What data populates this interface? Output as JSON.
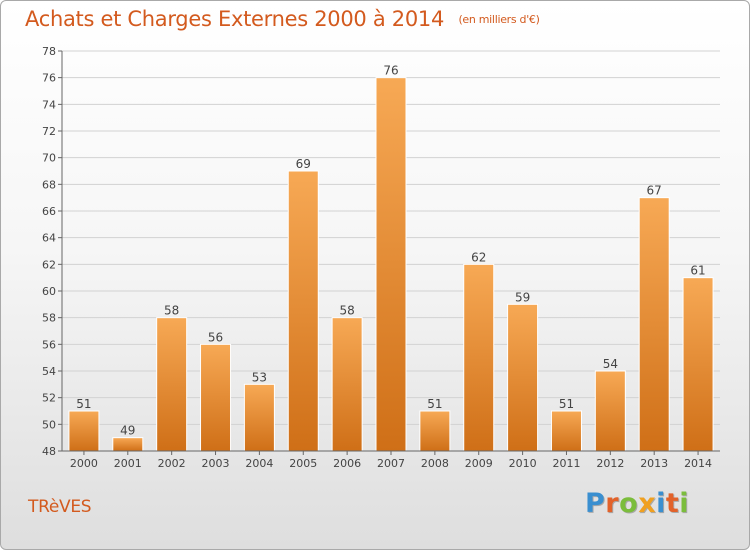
{
  "title": "Achats et Charges Externes 2000 à 2014",
  "subtitle": "(en milliers d'€)",
  "location": "TRèVES",
  "brand": {
    "letters": [
      "P",
      "r",
      "o",
      "x",
      "i",
      "t",
      "i"
    ],
    "colors": [
      "#3a8fd0",
      "#e2622a",
      "#7bbd3c",
      "#f0a020",
      "#3a8fd0",
      "#e2622a",
      "#7bbd3c"
    ]
  },
  "colors": {
    "title": "#d35a1e",
    "bar_light": "#f7a955",
    "bar_dark": "#cf6f17",
    "grid": "#d2d2d2",
    "axis": "#666666"
  },
  "chart_data": {
    "type": "bar",
    "categories": [
      "2000",
      "2001",
      "2002",
      "2003",
      "2004",
      "2005",
      "2006",
      "2007",
      "2008",
      "2009",
      "2010",
      "2011",
      "2012",
      "2013",
      "2014"
    ],
    "values": [
      51,
      49,
      58,
      56,
      53,
      69,
      58,
      76,
      51,
      62,
      59,
      51,
      54,
      67,
      61
    ],
    "ylim": [
      48,
      78
    ],
    "yticks": [
      48,
      50,
      52,
      54,
      56,
      58,
      60,
      62,
      64,
      66,
      68,
      70,
      72,
      74,
      76,
      78
    ],
    "grid": true,
    "data_labels": true
  }
}
